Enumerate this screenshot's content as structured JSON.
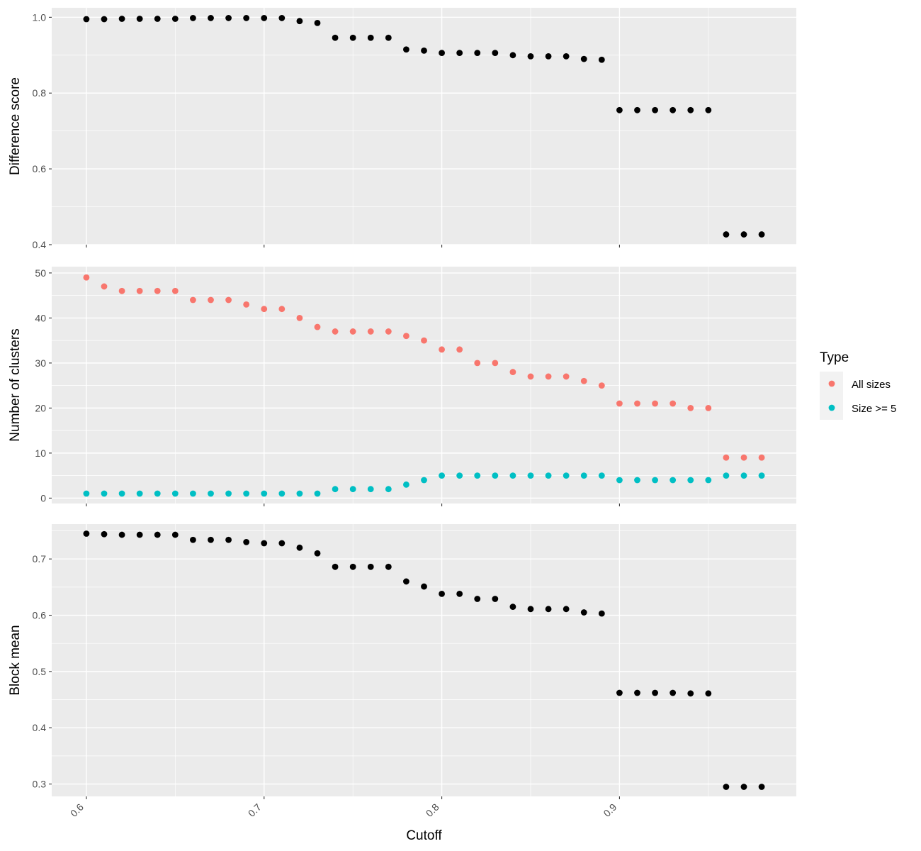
{
  "chart_data": [
    {
      "type": "scatter",
      "xlabel": "",
      "ylabel": "Difference score",
      "xlim": [
        0.5805,
        0.9995
      ],
      "ylim": [
        0.4,
        1.025
      ],
      "x_ticks": [
        0.6,
        0.7,
        0.8,
        0.9
      ],
      "x_tick_labels": [
        "0.6",
        "0.7",
        "0.8",
        "0.9"
      ],
      "y_ticks": [
        0.4,
        0.6,
        0.8,
        1.0
      ],
      "y_tick_labels": [
        "0.4",
        "0.6",
        "0.8",
        "1.0"
      ],
      "grid": true,
      "series": [
        {
          "color": "#000000",
          "x": [
            0.6,
            0.61,
            0.62,
            0.63,
            0.64,
            0.65,
            0.66,
            0.67,
            0.68,
            0.69,
            0.7,
            0.71,
            0.72,
            0.73,
            0.74,
            0.75,
            0.76,
            0.77,
            0.78,
            0.79,
            0.8,
            0.81,
            0.82,
            0.83,
            0.84,
            0.85,
            0.86,
            0.87,
            0.88,
            0.89,
            0.9,
            0.91,
            0.92,
            0.93,
            0.94,
            0.95,
            0.96,
            0.97,
            0.98
          ],
          "y": [
            0.995,
            0.995,
            0.996,
            0.996,
            0.996,
            0.996,
            0.998,
            0.998,
            0.998,
            0.998,
            0.998,
            0.998,
            0.99,
            0.985,
            0.946,
            0.946,
            0.946,
            0.946,
            0.915,
            0.912,
            0.906,
            0.906,
            0.906,
            0.906,
            0.9,
            0.897,
            0.897,
            0.897,
            0.89,
            0.888,
            0.755,
            0.755,
            0.755,
            0.755,
            0.755,
            0.755,
            0.427,
            0.427,
            0.427
          ]
        }
      ]
    },
    {
      "type": "scatter",
      "xlabel": "",
      "ylabel": "Number of clusters",
      "xlim": [
        0.5805,
        0.9995
      ],
      "ylim": [
        -1.2,
        51.4
      ],
      "x_ticks": [
        0.6,
        0.7,
        0.8,
        0.9
      ],
      "x_tick_labels": [
        "0.6",
        "0.7",
        "0.8",
        "0.9"
      ],
      "y_ticks": [
        0,
        10,
        20,
        30,
        40,
        50
      ],
      "y_tick_labels": [
        "0",
        "10",
        "20",
        "30",
        "40",
        "50"
      ],
      "grid": true,
      "series": [
        {
          "name": "All sizes",
          "color": "#f8766d",
          "x": [
            0.6,
            0.61,
            0.62,
            0.63,
            0.64,
            0.65,
            0.66,
            0.67,
            0.68,
            0.69,
            0.7,
            0.71,
            0.72,
            0.73,
            0.74,
            0.75,
            0.76,
            0.77,
            0.78,
            0.79,
            0.8,
            0.81,
            0.82,
            0.83,
            0.84,
            0.85,
            0.86,
            0.87,
            0.88,
            0.89,
            0.9,
            0.91,
            0.92,
            0.93,
            0.94,
            0.95,
            0.96,
            0.97,
            0.98
          ],
          "y": [
            49,
            47,
            46,
            46,
            46,
            46,
            44,
            44,
            44,
            43,
            42,
            42,
            40,
            38,
            37,
            37,
            37,
            37,
            36,
            35,
            33,
            33,
            30,
            30,
            28,
            27,
            27,
            27,
            26,
            25,
            21,
            21,
            21,
            21,
            20,
            20,
            9,
            9,
            9
          ]
        },
        {
          "name": "Size >= 5",
          "color": "#00bfc4",
          "x": [
            0.6,
            0.61,
            0.62,
            0.63,
            0.64,
            0.65,
            0.66,
            0.67,
            0.68,
            0.69,
            0.7,
            0.71,
            0.72,
            0.73,
            0.74,
            0.75,
            0.76,
            0.77,
            0.78,
            0.79,
            0.8,
            0.81,
            0.82,
            0.83,
            0.84,
            0.85,
            0.86,
            0.87,
            0.88,
            0.89,
            0.9,
            0.91,
            0.92,
            0.93,
            0.94,
            0.95,
            0.96,
            0.97,
            0.98
          ],
          "y": [
            1,
            1,
            1,
            1,
            1,
            1,
            1,
            1,
            1,
            1,
            1,
            1,
            1,
            1,
            2,
            2,
            2,
            2,
            3,
            4,
            5,
            5,
            5,
            5,
            5,
            5,
            5,
            5,
            5,
            5,
            4,
            4,
            4,
            4,
            4,
            4,
            5,
            5,
            5
          ]
        }
      ],
      "legend": {
        "title": "Type",
        "position": "right",
        "entries": [
          {
            "label": "All sizes",
            "color": "#f8766d"
          },
          {
            "label": "Size >= 5",
            "color": "#00bfc4"
          }
        ]
      }
    },
    {
      "type": "scatter",
      "xlabel": "Cutoff",
      "ylabel": "Block mean",
      "xlim": [
        0.5805,
        0.9995
      ],
      "ylim": [
        0.278,
        0.762
      ],
      "x_ticks": [
        0.6,
        0.7,
        0.8,
        0.9
      ],
      "x_tick_labels": [
        "0.6",
        "0.7",
        "0.8",
        "0.9"
      ],
      "y_ticks": [
        0.3,
        0.4,
        0.5,
        0.6,
        0.7
      ],
      "y_tick_labels": [
        "0.3",
        "0.4",
        "0.5",
        "0.6",
        "0.7"
      ],
      "grid": true,
      "series": [
        {
          "color": "#000000",
          "x": [
            0.6,
            0.61,
            0.62,
            0.63,
            0.64,
            0.65,
            0.66,
            0.67,
            0.68,
            0.69,
            0.7,
            0.71,
            0.72,
            0.73,
            0.74,
            0.75,
            0.76,
            0.77,
            0.78,
            0.79,
            0.8,
            0.81,
            0.82,
            0.83,
            0.84,
            0.85,
            0.86,
            0.87,
            0.88,
            0.89,
            0.9,
            0.91,
            0.92,
            0.93,
            0.94,
            0.95,
            0.96,
            0.97,
            0.98
          ],
          "y": [
            0.745,
            0.744,
            0.743,
            0.743,
            0.743,
            0.743,
            0.734,
            0.734,
            0.734,
            0.73,
            0.728,
            0.728,
            0.72,
            0.71,
            0.686,
            0.686,
            0.686,
            0.686,
            0.66,
            0.651,
            0.638,
            0.638,
            0.629,
            0.629,
            0.615,
            0.611,
            0.611,
            0.611,
            0.605,
            0.603,
            0.462,
            0.462,
            0.462,
            0.462,
            0.461,
            0.461,
            0.295,
            0.295,
            0.295
          ]
        }
      ]
    }
  ]
}
